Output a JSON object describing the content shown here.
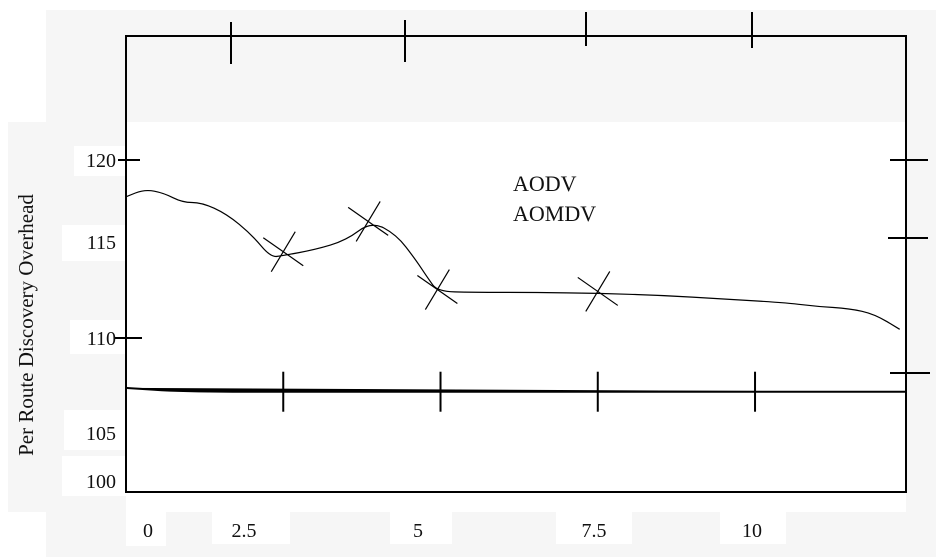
{
  "chart_data": {
    "type": "line",
    "title": "",
    "xlabel": "",
    "ylabel": "Per Route Discovery Overhead",
    "x_ticks": [
      "0",
      "2.5",
      "5",
      "7.5",
      "10"
    ],
    "y_ticks": [
      "100",
      "105",
      "110",
      "115",
      "120"
    ],
    "xlim": [
      0,
      12.4
    ],
    "ylim": [
      99.5,
      123.6
    ],
    "legend_position": "top-center",
    "series": [
      {
        "name": "AODV",
        "x": [
          0,
          0.3,
          0.6,
          0.9,
          1.2,
          1.6,
          2.0,
          2.3,
          2.5,
          3.0,
          3.5,
          3.9,
          4.3,
          4.6,
          4.8,
          4.95,
          5.5,
          6.5,
          7.5,
          8.5,
          9.5,
          10.5,
          11.0,
          11.5,
          11.9,
          12.3
        ],
        "y": [
          115.1,
          115.5,
          115.3,
          114.8,
          114.8,
          114.2,
          113.1,
          111.9,
          112.0,
          112.3,
          112.8,
          113.8,
          113.1,
          111.8,
          110.8,
          110.1,
          110.05,
          110.05,
          110.0,
          109.9,
          109.7,
          109.5,
          109.3,
          109.2,
          108.9,
          108.1
        ],
        "markers": [
          [
            2.5,
            112.2
          ],
          [
            3.85,
            113.8
          ],
          [
            4.95,
            110.2
          ],
          [
            7.5,
            110.1
          ]
        ]
      },
      {
        "name": "AOMDV",
        "x": [
          0,
          0.9,
          2.5,
          5,
          7.5,
          10,
          12.4
        ],
        "y": [
          105.0,
          104.8,
          104.8,
          104.8,
          104.8,
          104.8,
          104.8
        ],
        "markers": [
          [
            2.5,
            104.8
          ],
          [
            5,
            104.8
          ],
          [
            7.5,
            104.8
          ],
          [
            10,
            104.8
          ]
        ]
      }
    ],
    "legend": [
      "AODV",
      "AOMDV"
    ]
  }
}
